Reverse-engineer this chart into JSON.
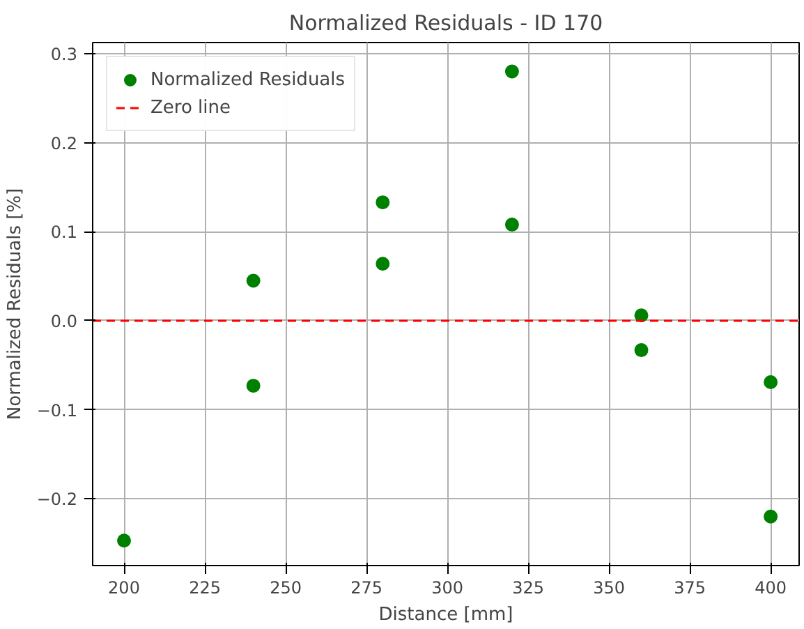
{
  "chart_data": {
    "type": "scatter",
    "title": "Normalized Residuals - ID 170",
    "xlabel": "Distance [mm]",
    "ylabel": "Normalized Residuals [%]",
    "x": [
      200,
      240,
      240,
      280,
      280,
      320,
      320,
      360,
      360,
      400,
      400
    ],
    "series": [
      {
        "name": "Normalized Residuals",
        "color": "#008000",
        "values": [
          -0.247,
          0.045,
          -0.073,
          0.133,
          0.064,
          0.28,
          0.108,
          0.006,
          -0.033,
          -0.069,
          -0.22
        ]
      }
    ],
    "ref_lines": [
      {
        "axis": "y",
        "value": 0,
        "label": "Zero line",
        "color": "#ff0000",
        "line_style": "dashed"
      }
    ],
    "xlim": [
      190.3,
      408.8
    ],
    "ylim": [
      -0.275,
      0.3125
    ],
    "xticks": [
      200,
      225,
      250,
      275,
      300,
      325,
      350,
      375,
      400
    ],
    "yticks": [
      {
        "value": -0.2,
        "label": "−0.2"
      },
      {
        "value": -0.1,
        "label": "−0.1"
      },
      {
        "value": 0,
        "label": "0.0"
      },
      {
        "value": 0.1,
        "label": "0.1"
      },
      {
        "value": 0.2,
        "label": "0.2"
      },
      {
        "value": 0.3,
        "label": "0.3"
      }
    ],
    "grid": true,
    "legend": "top left",
    "marker": "circle"
  }
}
